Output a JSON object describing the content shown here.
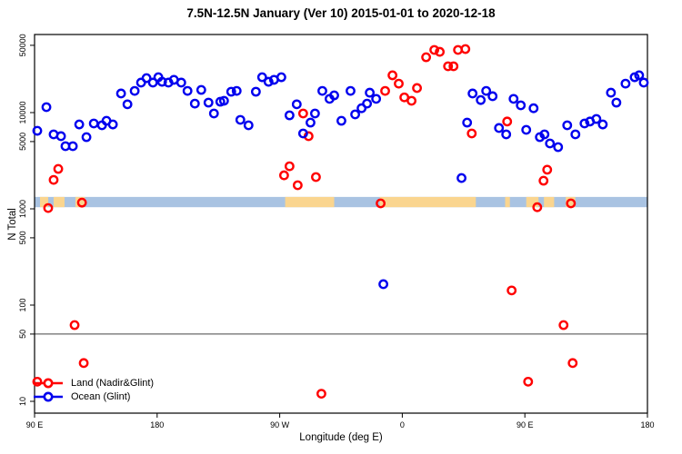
{
  "title": "7.5N-12.5N January (Ver 10)   2015-01-01 to 2020-12-18",
  "chart_data": {
    "type": "scatter",
    "title": "7.5N-12.5N January (Ver 10)   2015-01-01 to 2020-12-18",
    "xlabel": "Longitude (deg E)",
    "ylabel": "N Total",
    "x_axis": {
      "range_deg": [
        90,
        540
      ],
      "ticks": [
        {
          "value": 90,
          "label": "90 E"
        },
        {
          "value": 180,
          "label": "180"
        },
        {
          "value": 270,
          "label": "90 W"
        },
        {
          "value": 360,
          "label": "0"
        },
        {
          "value": 450,
          "label": "90 E"
        },
        {
          "value": 540,
          "label": "180"
        }
      ]
    },
    "y_axis": {
      "scale": "log",
      "range": [
        7.5,
        64000
      ],
      "ticks": [
        {
          "value": 10,
          "label": "10"
        },
        {
          "value": 50,
          "label": "50"
        },
        {
          "value": 100,
          "label": "100"
        },
        {
          "value": 500,
          "label": "500"
        },
        {
          "value": 1000,
          "label": "1000"
        },
        {
          "value": 5000,
          "label": "5000"
        },
        {
          "value": 10000,
          "label": "10000"
        },
        {
          "value": 50000,
          "label": "50000"
        }
      ]
    },
    "reference_line": {
      "value": 50,
      "color": "#444444"
    },
    "map_band": {
      "value_top": 1330,
      "value_bottom": 1040,
      "ocean_color": "#a9c3e2",
      "land_color": "#fad58f",
      "land_segments_deg": [
        [
          94,
          100
        ],
        [
          104,
          112
        ],
        [
          120,
          127
        ],
        [
          274,
          310
        ],
        [
          343.5,
          414
        ],
        [
          435.5,
          439
        ],
        [
          451,
          460
        ],
        [
          464,
          471.5
        ],
        [
          480,
          487
        ]
      ]
    },
    "legend": {
      "position": "bottom-left"
    },
    "series": [
      {
        "name": "Land (Nadir&Glint)",
        "color": "#ff0000",
        "points": [
          [
            92,
            16
          ],
          [
            100,
            1020
          ],
          [
            104,
            2000
          ],
          [
            107.4,
            2600
          ],
          [
            119.4,
            62
          ],
          [
            124.8,
            1160
          ],
          [
            126.1,
            25
          ],
          [
            273.2,
            2230
          ],
          [
            277.2,
            2770
          ],
          [
            283.2,
            1760
          ],
          [
            287.2,
            9790
          ],
          [
            291.2,
            5690
          ],
          [
            296.6,
            2140
          ],
          [
            300.6,
            12
          ],
          [
            344.1,
            1140
          ],
          [
            347.4,
            16800
          ],
          [
            352.8,
            24400
          ],
          [
            357.4,
            20000
          ],
          [
            361.5,
            14400
          ],
          [
            366.8,
            13270
          ],
          [
            370.8,
            18000
          ],
          [
            377.5,
            37600
          ],
          [
            383.5,
            44800
          ],
          [
            387.5,
            42800
          ],
          [
            393.6,
            30300
          ],
          [
            397.6,
            30300
          ],
          [
            400.9,
            44800
          ],
          [
            406.3,
            45700
          ],
          [
            411,
            6070
          ],
          [
            437,
            8080
          ],
          [
            440.3,
            142
          ],
          [
            452.4,
            16
          ],
          [
            459.1,
            1040
          ],
          [
            463.7,
            1960
          ],
          [
            466.4,
            2550
          ],
          [
            478.4,
            62
          ],
          [
            483.8,
            1140
          ],
          [
            485.1,
            25
          ]
        ]
      },
      {
        "name": "Ocean (Glint)",
        "color": "#0000ee",
        "points": [
          [
            92,
            6470
          ],
          [
            98.7,
            11400
          ],
          [
            104,
            5940
          ],
          [
            109.4,
            5690
          ],
          [
            112.7,
            4480
          ],
          [
            118.1,
            4480
          ],
          [
            122.8,
            7530
          ],
          [
            128.1,
            5560
          ],
          [
            133.5,
            7710
          ],
          [
            139.5,
            7380
          ],
          [
            142.8,
            8220
          ],
          [
            147.5,
            7530
          ],
          [
            153.5,
            15800
          ],
          [
            158.2,
            12200
          ],
          [
            163.5,
            16800
          ],
          [
            168.2,
            20500
          ],
          [
            172.2,
            22800
          ],
          [
            176.9,
            20500
          ],
          [
            180.9,
            23300
          ],
          [
            183.6,
            20900
          ],
          [
            188.3,
            20500
          ],
          [
            192.3,
            21900
          ],
          [
            197.7,
            20500
          ],
          [
            202.3,
            16800
          ],
          [
            207.7,
            12400
          ],
          [
            212.4,
            17200
          ],
          [
            217.7,
            12700
          ],
          [
            221.7,
            9790
          ],
          [
            226.4,
            12970
          ],
          [
            229.1,
            13270
          ],
          [
            234.4,
            16480
          ],
          [
            238.4,
            16800
          ],
          [
            241.1,
            8410
          ],
          [
            247.1,
            7380
          ],
          [
            252.5,
            16480
          ],
          [
            257.1,
            23300
          ],
          [
            261.8,
            20900
          ],
          [
            265.8,
            21900
          ],
          [
            271.2,
            23300
          ],
          [
            277.2,
            9370
          ],
          [
            282.5,
            12200
          ],
          [
            287.2,
            6070
          ],
          [
            292.6,
            7870
          ],
          [
            295.9,
            9790
          ],
          [
            301.3,
            16800
          ],
          [
            306.6,
            13900
          ],
          [
            310,
            15100
          ],
          [
            315.3,
            8220
          ],
          [
            322,
            16800
          ],
          [
            325.4,
            9580
          ],
          [
            330.1,
            11100
          ],
          [
            334.1,
            12400
          ],
          [
            336.1,
            16100
          ],
          [
            340.8,
            13900
          ],
          [
            346.1,
            165
          ],
          [
            403.5,
            2090
          ],
          [
            407.6,
            7870
          ],
          [
            411.6,
            15800
          ],
          [
            417.6,
            13500
          ],
          [
            421.6,
            16800
          ],
          [
            426.3,
            14800
          ],
          [
            431,
            6920
          ],
          [
            436.3,
            5940
          ],
          [
            441.7,
            13900
          ],
          [
            447,
            11900
          ],
          [
            451,
            6620
          ],
          [
            456.4,
            11100
          ],
          [
            461,
            5560
          ],
          [
            464.4,
            5940
          ],
          [
            468.4,
            4780
          ],
          [
            474.4,
            4380
          ],
          [
            481.1,
            7380
          ],
          [
            487.1,
            5940
          ],
          [
            493.8,
            7710
          ],
          [
            497.8,
            8080
          ],
          [
            502.5,
            8590
          ],
          [
            507.2,
            7530
          ],
          [
            513.2,
            16100
          ],
          [
            517.2,
            12700
          ],
          [
            523.9,
            20000
          ],
          [
            530.6,
            23300
          ],
          [
            533.9,
            24400
          ],
          [
            537.3,
            20500
          ]
        ]
      }
    ]
  }
}
